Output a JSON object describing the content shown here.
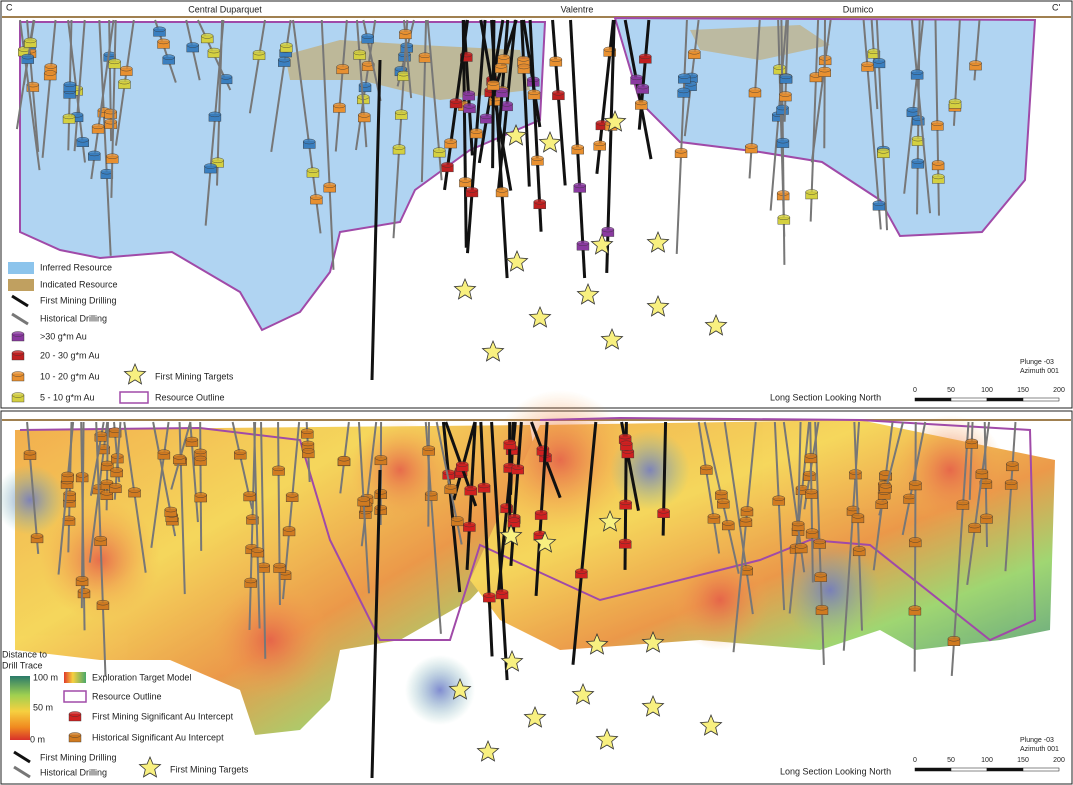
{
  "top_panel": {
    "section_start": "C",
    "section_end": "C'",
    "areas": [
      "Central Duparquet",
      "Valentre",
      "Dumico"
    ],
    "legend": {
      "inferred": "Inferred Resource",
      "indicated": "Indicated Resource",
      "fm_drilling": "First Mining Drilling",
      "hist_drilling": "Historical Drilling",
      "grade_30": ">30 g*m Au",
      "grade_20": "20 - 30 g*m Au",
      "grade_10": "10 - 20 g*m Au",
      "grade_5": "5 - 10 g*m Au",
      "targets": "First Mining Targets",
      "outline": "Resource Outline"
    },
    "plunge": "Plunge -03",
    "azimuth": "Azimuth 001",
    "view": "Long Section Looking North",
    "scale": [
      "0",
      "50",
      "100",
      "150",
      "200"
    ]
  },
  "bottom_panel": {
    "distance_title": "Distance to",
    "distance_title2": "Drill Trace",
    "distance_labels": [
      "100 m",
      "50 m",
      "0 m"
    ],
    "legend": {
      "model": "Exploration Target Model",
      "outline": "Resource Outline",
      "fm_intercept": "First Mining Significant Au Intercept",
      "hist_intercept": "Historical Significant Au Intercept",
      "fm_drilling": "First Mining Drilling",
      "hist_drilling": "Historical Drilling",
      "targets": "First Mining Targets"
    },
    "plunge": "Plunge -03",
    "azimuth": "Azimuth 001",
    "view": "Long Section Looking North",
    "scale": [
      "0",
      "50",
      "100",
      "150",
      "200"
    ]
  }
}
